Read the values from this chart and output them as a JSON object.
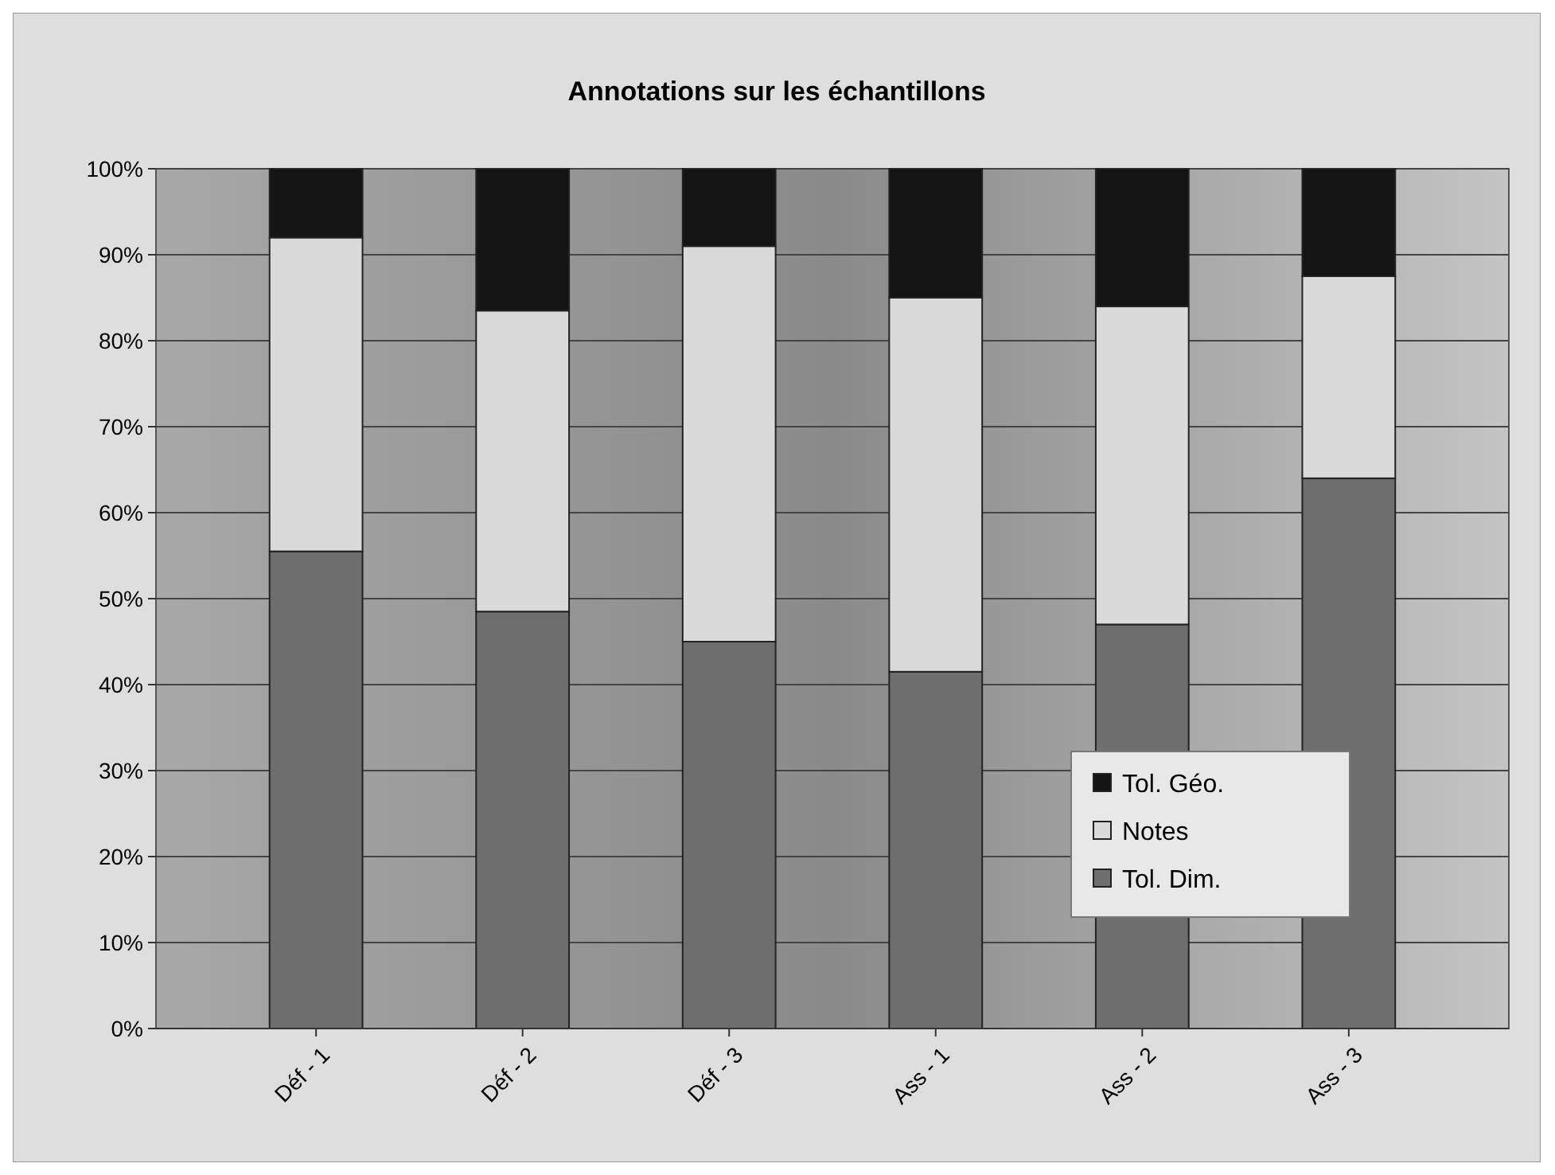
{
  "chart_data": {
    "type": "bar",
    "stacked": true,
    "title": "Annotations sur les échantillons",
    "categories": [
      "Déf - 1",
      "Déf - 2",
      "Déf - 3",
      "Ass - 1",
      "Ass - 2",
      "Ass - 3"
    ],
    "series": [
      {
        "name": "Tol. Dim.",
        "color": "#6e6e6e",
        "values": [
          55.5,
          48.5,
          45,
          41.5,
          47,
          64
        ]
      },
      {
        "name": "Notes",
        "color": "#dadada",
        "values": [
          36.5,
          35,
          46,
          43.5,
          37,
          23.5
        ]
      },
      {
        "name": "Tol. Géo.",
        "color": "#141414",
        "values": [
          8,
          16.5,
          9,
          15,
          16,
          12.5
        ]
      }
    ],
    "ylim": [
      0,
      100
    ],
    "yticks": [
      {
        "value": 0,
        "label": "0%"
      },
      {
        "value": 10,
        "label": "10%"
      },
      {
        "value": 20,
        "label": "20%"
      },
      {
        "value": 30,
        "label": "30%"
      },
      {
        "value": 40,
        "label": "40%"
      },
      {
        "value": 50,
        "label": "50%"
      },
      {
        "value": 60,
        "label": "60%"
      },
      {
        "value": 70,
        "label": "70%"
      },
      {
        "value": 80,
        "label": "80%"
      },
      {
        "value": 90,
        "label": "90%"
      },
      {
        "value": 100,
        "label": "100%"
      }
    ],
    "grid": "y",
    "legend": "bottom right"
  }
}
